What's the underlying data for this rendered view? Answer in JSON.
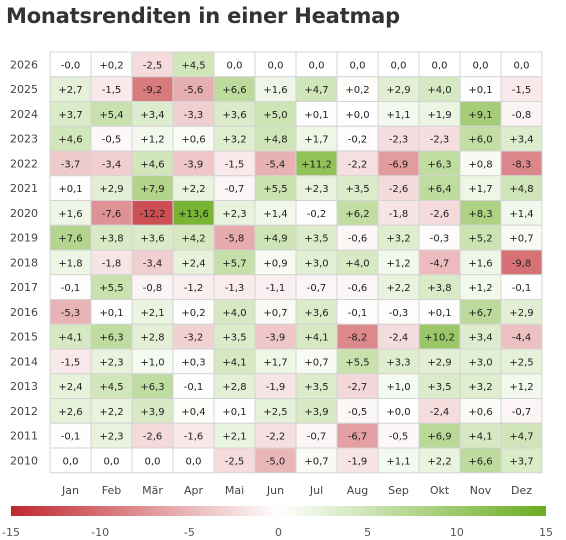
{
  "chart_data": {
    "type": "heatmap",
    "title": "Monatsrenditen in einer Heatmap",
    "xlabel": "",
    "ylabel": "",
    "months": [
      "Jan",
      "Feb",
      "Mär",
      "Apr",
      "Mai",
      "Jun",
      "Jul",
      "Aug",
      "Sep",
      "Okt",
      "Nov",
      "Dez"
    ],
    "years": [
      "2026",
      "2025",
      "2024",
      "2023",
      "2022",
      "2021",
      "2020",
      "2019",
      "2018",
      "2017",
      "2016",
      "2015",
      "2014",
      "2013",
      "2012",
      "2011",
      "2010"
    ],
    "values": [
      [
        "-0,0",
        "+0,2",
        "-2,5",
        "+4,5",
        "0,0",
        "0,0",
        "0,0",
        "0,0",
        "0,0",
        "0,0",
        "0,0",
        "0,0"
      ],
      [
        "+2,7",
        "-1,5",
        "-9,2",
        "-5,6",
        "+6,6",
        "+1,6",
        "+4,7",
        "+0,2",
        "+2,9",
        "+4,0",
        "+0,1",
        "-1,5"
      ],
      [
        "+3,7",
        "+5,4",
        "+3,4",
        "-3,3",
        "+3,6",
        "+5,0",
        "+0,1",
        "+0,0",
        "+1,1",
        "+1,9",
        "+9,1",
        "-0,8"
      ],
      [
        "+4,6",
        "-0,5",
        "+1,2",
        "+0,6",
        "+3,2",
        "+4,8",
        "+1,7",
        "-0,2",
        "-2,3",
        "-2,3",
        "+6,0",
        "+3,4"
      ],
      [
        "-3,7",
        "-3,4",
        "+4,6",
        "-3,9",
        "-1,5",
        "-5,4",
        "+11,2",
        "-2,2",
        "-6,9",
        "+6,3",
        "+0,8",
        "-8,3"
      ],
      [
        "+0,1",
        "+2,9",
        "+7,9",
        "+2,2",
        "-0,7",
        "+5,5",
        "+2,3",
        "+3,5",
        "-2,6",
        "+6,4",
        "+1,7",
        "+4,8"
      ],
      [
        "+1,6",
        "-7,6",
        "-12,2",
        "+13,6",
        "+2,3",
        "+1,4",
        "-0,2",
        "+6,2",
        "-1,8",
        "-2,6",
        "+8,3",
        "+1,4"
      ],
      [
        "+7,6",
        "+3,8",
        "+3,6",
        "+4,2",
        "-5,8",
        "+4,9",
        "+3,5",
        "-0,6",
        "+3,2",
        "-0,3",
        "+5,2",
        "+0,7"
      ],
      [
        "+1,8",
        "-1,8",
        "-3,4",
        "+2,4",
        "+5,7",
        "+0,9",
        "+3,0",
        "+4,0",
        "+1,2",
        "-4,7",
        "+1,6",
        "-9,8"
      ],
      [
        "-0,1",
        "+5,5",
        "-0,8",
        "-1,2",
        "-1,3",
        "-1,1",
        "-0,7",
        "-0,6",
        "+2,2",
        "+3,8",
        "+1,2",
        "-0,1"
      ],
      [
        "-5,3",
        "+0,1",
        "+2,1",
        "+0,2",
        "+4,0",
        "+0,7",
        "+3,6",
        "-0,1",
        "-0,3",
        "+0,1",
        "+6,7",
        "+2,9"
      ],
      [
        "+4,1",
        "+6,3",
        "+2,8",
        "-3,2",
        "+3,5",
        "-3,9",
        "+4,1",
        "-8,2",
        "-2,4",
        "+10,2",
        "+3,4",
        "-4,4"
      ],
      [
        "-1,5",
        "+2,3",
        "+1,0",
        "+0,3",
        "+4,1",
        "+1,7",
        "+0,7",
        "+5,5",
        "+3,3",
        "+2,9",
        "+3,0",
        "+2,5"
      ],
      [
        "+2,4",
        "+4,5",
        "+6,3",
        "-0,1",
        "+2,8",
        "-1,9",
        "+3,5",
        "-2,7",
        "+1,0",
        "+3,5",
        "+3,2",
        "+1,2"
      ],
      [
        "+2,6",
        "+2,2",
        "+3,9",
        "+0,4",
        "+0,1",
        "+2,5",
        "+3,9",
        "-0,5",
        "+0,0",
        "-2,4",
        "+0,6",
        "-0,7"
      ],
      [
        "-0,1",
        "+2,3",
        "-2,6",
        "-1,6",
        "+2,1",
        "-2,2",
        "-0,7",
        "-6,7",
        "-0,5",
        "+6,9",
        "+4,1",
        "+4,7"
      ],
      [
        "0,0",
        "0,0",
        "0,0",
        "0,0",
        "-2,5",
        "-5,0",
        "+0,7",
        "-1,9",
        "+1,1",
        "+2,2",
        "+6,6",
        "+3,7"
      ]
    ],
    "color_scale": {
      "min": -15,
      "max": 15,
      "ticks": [
        "-15",
        "-10",
        "-5",
        "0",
        "5",
        "10",
        "15"
      ],
      "tick_values": [
        -15,
        -10,
        -5,
        0,
        5,
        10,
        15
      ],
      "negative_color": "#c0272d",
      "zero_color": "#ffffff",
      "positive_color": "#6aad1f"
    }
  }
}
